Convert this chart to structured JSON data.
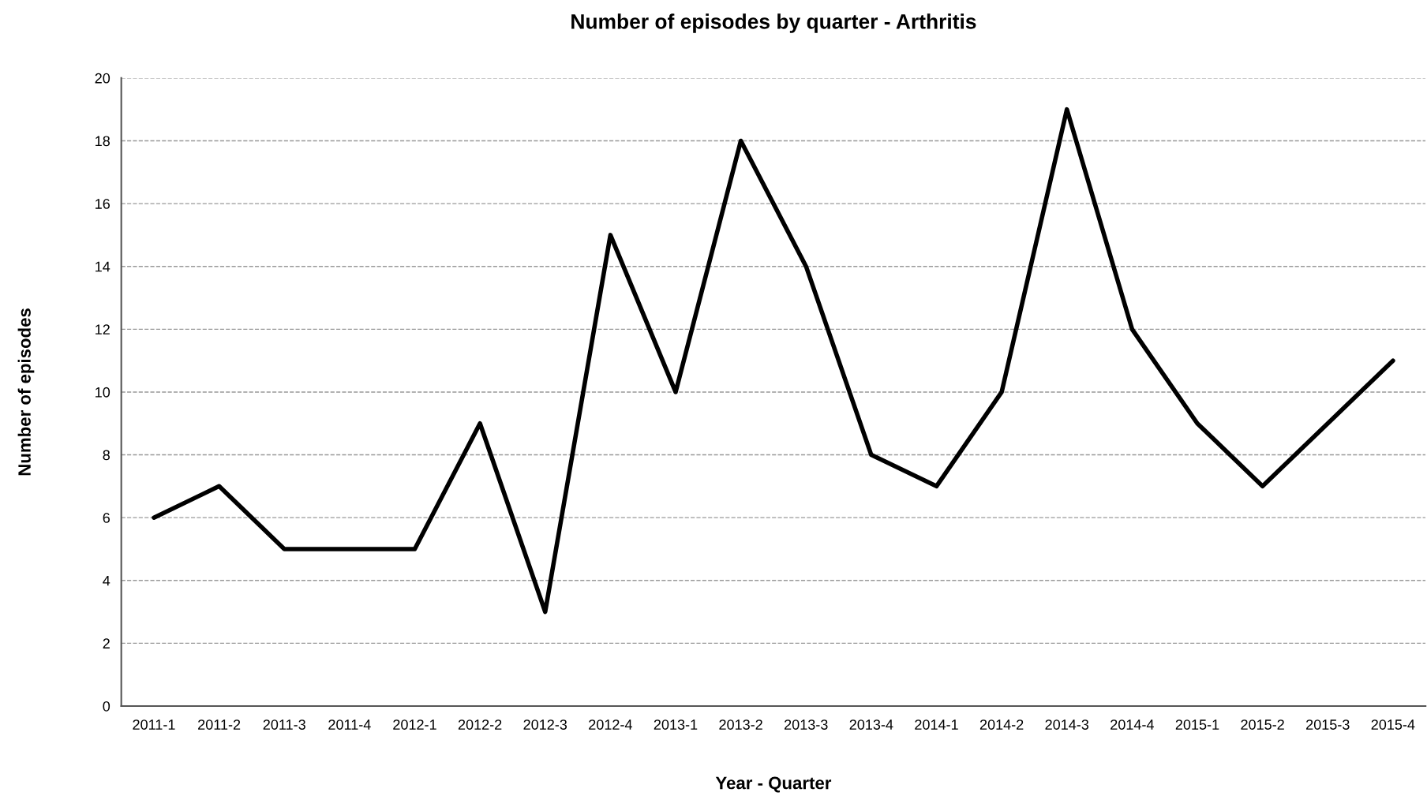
{
  "chart_data": {
    "type": "line",
    "title": "Number of episodes by quarter - Arthritis",
    "xlabel": "Year - Quarter",
    "ylabel": "Number of episodes",
    "categories": [
      "2011-1",
      "2011-2",
      "2011-3",
      "2011-4",
      "2012-1",
      "2012-2",
      "2012-3",
      "2012-4",
      "2013-1",
      "2013-2",
      "2013-3",
      "2013-4",
      "2014-1",
      "2014-2",
      "2014-3",
      "2014-4",
      "2015-1",
      "2015-2",
      "2015-3",
      "2015-4"
    ],
    "series": [
      {
        "color": "#000000",
        "values": [
          6,
          7,
          5,
          5,
          5,
          9,
          3,
          15,
          10,
          18,
          14,
          8,
          7,
          10,
          19,
          12,
          9,
          7,
          9,
          11
        ]
      }
    ],
    "ylim": [
      0,
      20
    ],
    "yticks": [
      0,
      2,
      4,
      6,
      8,
      10,
      12,
      14,
      16,
      18,
      20
    ],
    "grid": "y",
    "marker": "none",
    "line_style": "solid"
  }
}
